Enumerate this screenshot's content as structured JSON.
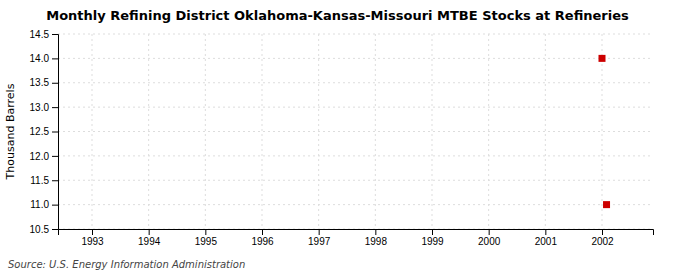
{
  "chart_data": {
    "type": "scatter",
    "title": "Monthly Refining District Oklahoma-Kansas-Missouri MTBE Stocks at Refineries",
    "y_label": "Thousand Barrels",
    "annotations": [
      "Source: U.S. Energy Information Administration"
    ],
    "x": [
      2002.0,
      2002.08
    ],
    "values": [
      14.0,
      11.0
    ],
    "color": "#cc0000",
    "marker": "square",
    "xlim": [
      1992.4,
      2002.9
    ],
    "ylim": [
      10.5,
      14.5
    ],
    "xticks": [
      1993,
      1994,
      1995,
      1996,
      1997,
      1998,
      1999,
      2000,
      2001,
      2002
    ],
    "yticks": [
      10.5,
      {
        "value": 11.0,
        "label": "11.0"
      },
      11.5,
      {
        "value": 12.0,
        "label": "12.0"
      },
      12.5,
      {
        "value": 13.0,
        "label": "13.0"
      },
      13.5,
      {
        "value": 14.0,
        "label": "14.0"
      },
      14.5
    ],
    "grid": true
  }
}
